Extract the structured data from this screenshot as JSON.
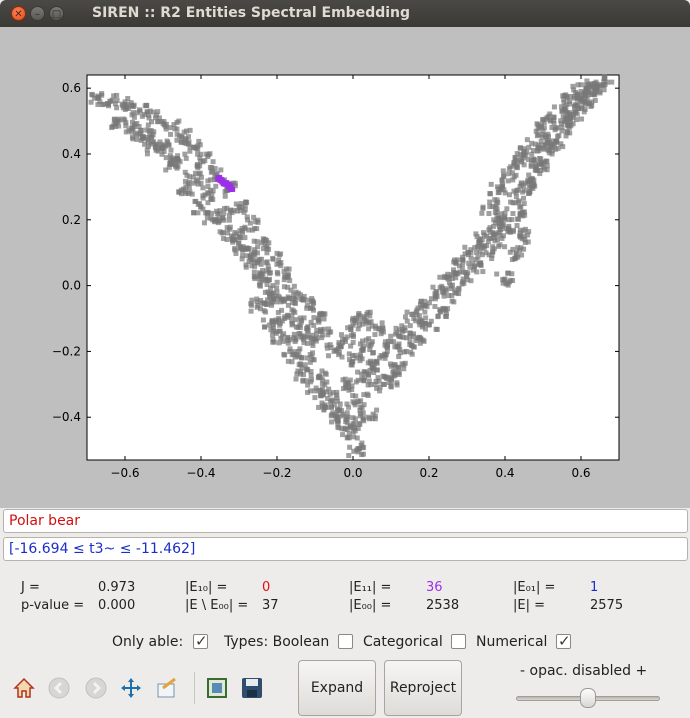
{
  "window": {
    "title": "SIREN :: R2 Entities Spectral Embedding"
  },
  "chart_data": {
    "type": "scatter",
    "title": "",
    "xlabel": "",
    "ylabel": "",
    "xlim": [
      -0.7,
      0.7
    ],
    "ylim": [
      -0.53,
      0.64
    ],
    "x_ticks": [
      "−0.6",
      "−0.4",
      "−0.2",
      "0.0",
      "0.2",
      "0.4",
      "0.6"
    ],
    "x_tick_values": [
      -0.6,
      -0.4,
      -0.2,
      0.0,
      0.2,
      0.4,
      0.6
    ],
    "y_ticks": [
      "0.6",
      "0.4",
      "0.2",
      "0.0",
      "−0.2",
      "−0.4"
    ],
    "y_tick_values": [
      0.6,
      0.4,
      0.2,
      0.0,
      -0.2,
      -0.4
    ],
    "grid": false,
    "series": [
      {
        "color": "#777777",
        "count": 2538,
        "points": [
          [
            -0.68,
            0.57
          ],
          [
            -0.64,
            0.56
          ],
          [
            -0.6,
            0.55
          ],
          [
            -0.56,
            0.53
          ],
          [
            -0.52,
            0.51
          ],
          [
            -0.48,
            0.48
          ],
          [
            -0.45,
            0.45
          ],
          [
            -0.42,
            0.42
          ],
          [
            -0.39,
            0.38
          ],
          [
            -0.36,
            0.34
          ],
          [
            -0.33,
            0.29
          ],
          [
            -0.3,
            0.24
          ],
          [
            -0.27,
            0.19
          ],
          [
            -0.24,
            0.13
          ],
          [
            -0.21,
            0.08
          ],
          [
            -0.18,
            0.03
          ],
          [
            -0.15,
            -0.02
          ],
          [
            -0.12,
            -0.06
          ],
          [
            -0.09,
            -0.1
          ],
          [
            -0.62,
            0.5
          ],
          [
            -0.58,
            0.48
          ],
          [
            -0.54,
            0.45
          ],
          [
            -0.5,
            0.42
          ],
          [
            -0.46,
            0.38
          ],
          [
            -0.42,
            0.33
          ],
          [
            -0.38,
            0.28
          ],
          [
            -0.34,
            0.22
          ],
          [
            -0.3,
            0.15
          ],
          [
            -0.27,
            0.09
          ],
          [
            -0.24,
            0.03
          ],
          [
            -0.21,
            -0.04
          ],
          [
            -0.18,
            -0.1
          ],
          [
            -0.15,
            -0.16
          ],
          [
            -0.12,
            -0.22
          ],
          [
            -0.09,
            -0.28
          ],
          [
            -0.06,
            -0.33
          ],
          [
            -0.03,
            -0.38
          ],
          [
            -0.25,
            -0.06
          ],
          [
            -0.22,
            -0.12
          ],
          [
            -0.19,
            -0.16
          ],
          [
            -0.16,
            -0.21
          ],
          [
            -0.13,
            -0.27
          ],
          [
            -0.1,
            -0.32
          ],
          [
            -0.07,
            -0.37
          ],
          [
            -0.04,
            -0.41
          ],
          [
            -0.01,
            -0.45
          ],
          [
            0.01,
            -0.5
          ],
          [
            0.0,
            -0.42
          ],
          [
            -0.02,
            -0.3
          ],
          [
            0.02,
            -0.35
          ],
          [
            0.04,
            -0.4
          ],
          [
            0.03,
            -0.28
          ],
          [
            -0.05,
            -0.2
          ],
          [
            -0.02,
            -0.17
          ],
          [
            0.01,
            -0.22
          ],
          [
            0.04,
            -0.18
          ],
          [
            0.07,
            -0.22
          ],
          [
            0.1,
            -0.17
          ],
          [
            0.12,
            -0.25
          ],
          [
            0.08,
            -0.3
          ],
          [
            0.05,
            -0.25
          ],
          [
            0.0,
            -0.12
          ],
          [
            0.03,
            -0.1
          ],
          [
            -0.08,
            -0.15
          ],
          [
            0.06,
            -0.13
          ],
          [
            0.1,
            -0.28
          ],
          [
            0.14,
            -0.2
          ],
          [
            0.13,
            -0.14
          ],
          [
            0.16,
            -0.1
          ],
          [
            0.19,
            -0.06
          ],
          [
            0.22,
            -0.02
          ],
          [
            0.25,
            0.02
          ],
          [
            0.28,
            0.06
          ],
          [
            0.31,
            0.1
          ],
          [
            0.34,
            0.14
          ],
          [
            0.37,
            0.18
          ],
          [
            0.4,
            0.22
          ],
          [
            0.43,
            0.27
          ],
          [
            0.46,
            0.32
          ],
          [
            0.49,
            0.37
          ],
          [
            0.52,
            0.42
          ],
          [
            0.55,
            0.47
          ],
          [
            0.58,
            0.52
          ],
          [
            0.61,
            0.56
          ],
          [
            0.64,
            0.6
          ],
          [
            0.66,
            0.62
          ],
          [
            0.17,
            -0.16
          ],
          [
            0.2,
            -0.12
          ],
          [
            0.23,
            -0.08
          ],
          [
            0.26,
            -0.03
          ],
          [
            0.29,
            0.02
          ],
          [
            0.32,
            0.06
          ],
          [
            0.35,
            0.1
          ],
          [
            0.38,
            0.14
          ],
          [
            0.41,
            0.18
          ],
          [
            0.44,
            0.22
          ],
          [
            0.47,
            0.3
          ],
          [
            0.5,
            0.36
          ],
          [
            0.53,
            0.43
          ],
          [
            0.56,
            0.5
          ],
          [
            0.59,
            0.55
          ],
          [
            0.62,
            0.58
          ],
          [
            0.36,
            0.24
          ],
          [
            0.38,
            0.3
          ],
          [
            0.41,
            0.34
          ],
          [
            0.43,
            0.38
          ],
          [
            0.45,
            0.4
          ],
          [
            0.48,
            0.43
          ],
          [
            0.5,
            0.47
          ],
          [
            0.52,
            0.5
          ],
          [
            0.55,
            0.53
          ],
          [
            0.57,
            0.56
          ],
          [
            0.6,
            0.59
          ],
          [
            0.63,
            0.61
          ],
          [
            0.4,
            0.02
          ],
          [
            0.43,
            0.1
          ],
          [
            0.45,
            0.15
          ],
          [
            -0.44,
            0.3
          ],
          [
            -0.4,
            0.24
          ],
          [
            -0.37,
            0.2
          ],
          [
            -0.33,
            0.16
          ],
          [
            -0.29,
            0.11
          ],
          [
            -0.26,
            0.07
          ],
          [
            -0.23,
            0.02
          ],
          [
            -0.2,
            -0.02
          ],
          [
            -0.17,
            -0.06
          ],
          [
            -0.14,
            -0.12
          ],
          [
            -0.11,
            -0.16
          ],
          [
            -0.48,
            0.37
          ],
          [
            -0.52,
            0.42
          ],
          [
            -0.56,
            0.46
          ]
        ]
      },
      {
        "color": "#9b30e8",
        "count": 36,
        "points": [
          [
            -0.355,
            0.325
          ],
          [
            -0.345,
            0.318
          ],
          [
            -0.335,
            0.31
          ],
          [
            -0.325,
            0.3
          ],
          [
            -0.318,
            0.293
          ],
          [
            -0.35,
            0.32
          ],
          [
            -0.34,
            0.313
          ],
          [
            -0.33,
            0.305
          ]
        ]
      }
    ]
  },
  "query": {
    "name": "Polar bear",
    "condition": "[-16.694 ≤ t3~ ≤ -11.462]"
  },
  "stats": {
    "j_label": "J =",
    "j_value": "0.973",
    "pval_label": "p-value =",
    "pval_value": "0.000",
    "e10_label": "|E₁₀| =",
    "e10_value": "0",
    "e_minus_label": "|E \\ E₀₀| =",
    "e_minus_value": "37",
    "e11_label": "|E₁₁| =",
    "e11_value": "36",
    "e00_label": "|E₀₀| =",
    "e00_value": "2538",
    "e01_label": "|E₀₁| =",
    "e01_value": "1",
    "e_label": "|E| =",
    "e_value": "2575",
    "colors": {
      "e10": "#e01010",
      "e11": "#9b30e8",
      "e01": "#1a2fc8"
    }
  },
  "options": {
    "only_able_label": "Only able:",
    "only_able_checked": true,
    "types_label": "Types: Boolean",
    "boolean_checked": false,
    "categorical_label": "Categorical",
    "categorical_checked": false,
    "numerical_label": "Numerical",
    "numerical_checked": true
  },
  "toolbar": {
    "icons": [
      "home-icon",
      "back-icon",
      "forward-icon",
      "pan-icon",
      "zoom-icon",
      "configure-icon",
      "save-icon"
    ]
  },
  "buttons": {
    "expand": "Expand",
    "reproject": "Reproject"
  },
  "opacity": {
    "label": "-  opac. disabled  +",
    "level": 0.5
  }
}
